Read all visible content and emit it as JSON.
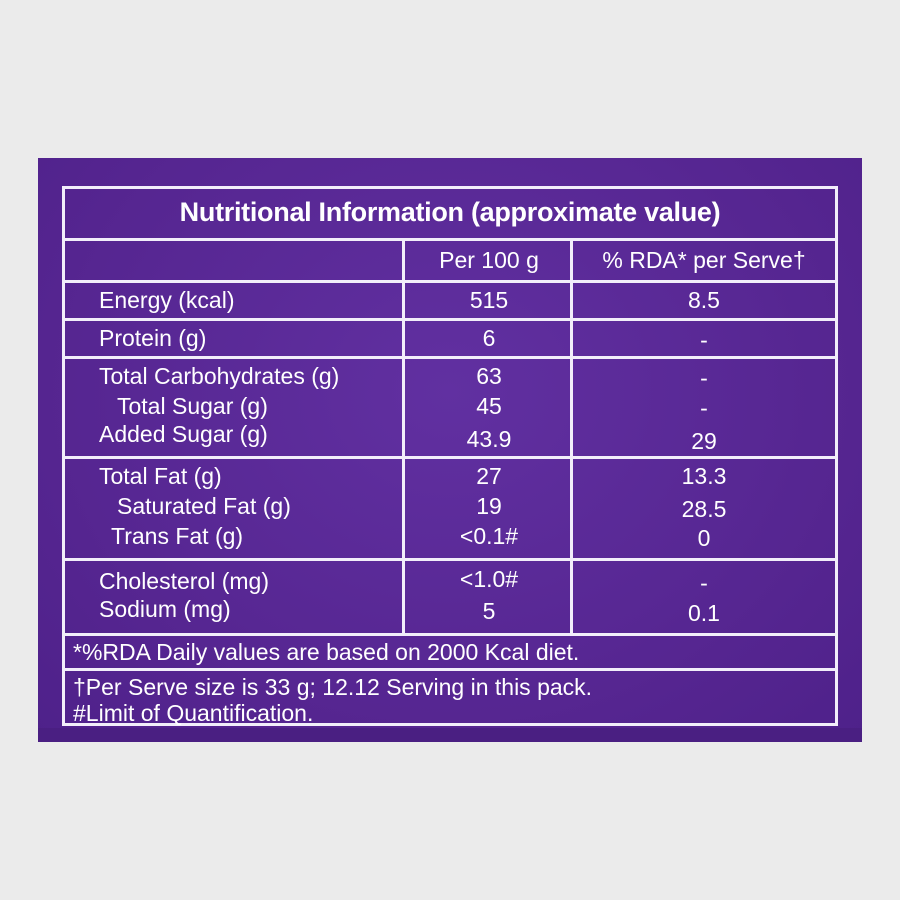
{
  "title": "Nutritional Information (approximate value)",
  "headers": {
    "col2": "Per 100 g",
    "col3": "% RDA* per Serve†"
  },
  "groups": [
    {
      "rows": [
        {
          "label": "Energy (kcal)",
          "per100": "515",
          "rda": "8.5"
        }
      ]
    },
    {
      "rows": [
        {
          "label": "Protein (g)",
          "per100": "6",
          "rda": "-"
        }
      ]
    },
    {
      "rows": [
        {
          "label": "Total Carbohydrates (g)",
          "per100": "63",
          "rda": "-"
        },
        {
          "label": "Total Sugar (g)",
          "per100": "45",
          "rda": "-"
        },
        {
          "label": "Added Sugar (g)",
          "per100": "43.9",
          "rda": "29"
        }
      ]
    },
    {
      "rows": [
        {
          "label": "Total Fat (g)",
          "per100": "27",
          "rda": "13.3"
        },
        {
          "label": "Saturated Fat (g)",
          "per100": "19",
          "rda": "28.5"
        },
        {
          "label": "Trans Fat (g)",
          "per100": "<0.1#",
          "rda": "0"
        }
      ]
    },
    {
      "rows": [
        {
          "label": "Cholesterol (mg)",
          "per100": "<1.0#",
          "rda": "-"
        },
        {
          "label": "Sodium (mg)",
          "per100": "5",
          "rda": "0.1"
        }
      ]
    }
  ],
  "notes": {
    "rda": "*%RDA Daily values are based on 2000 Kcal diet.",
    "serve": "†Per Serve size is 33 g; 12.12 Serving in this pack.",
    "loq": "#Limit of Quantification."
  },
  "colors": {
    "panel": "#5b2a97",
    "line": "#f2eefa",
    "text": "#ffffff",
    "background": "#ebebeb"
  }
}
